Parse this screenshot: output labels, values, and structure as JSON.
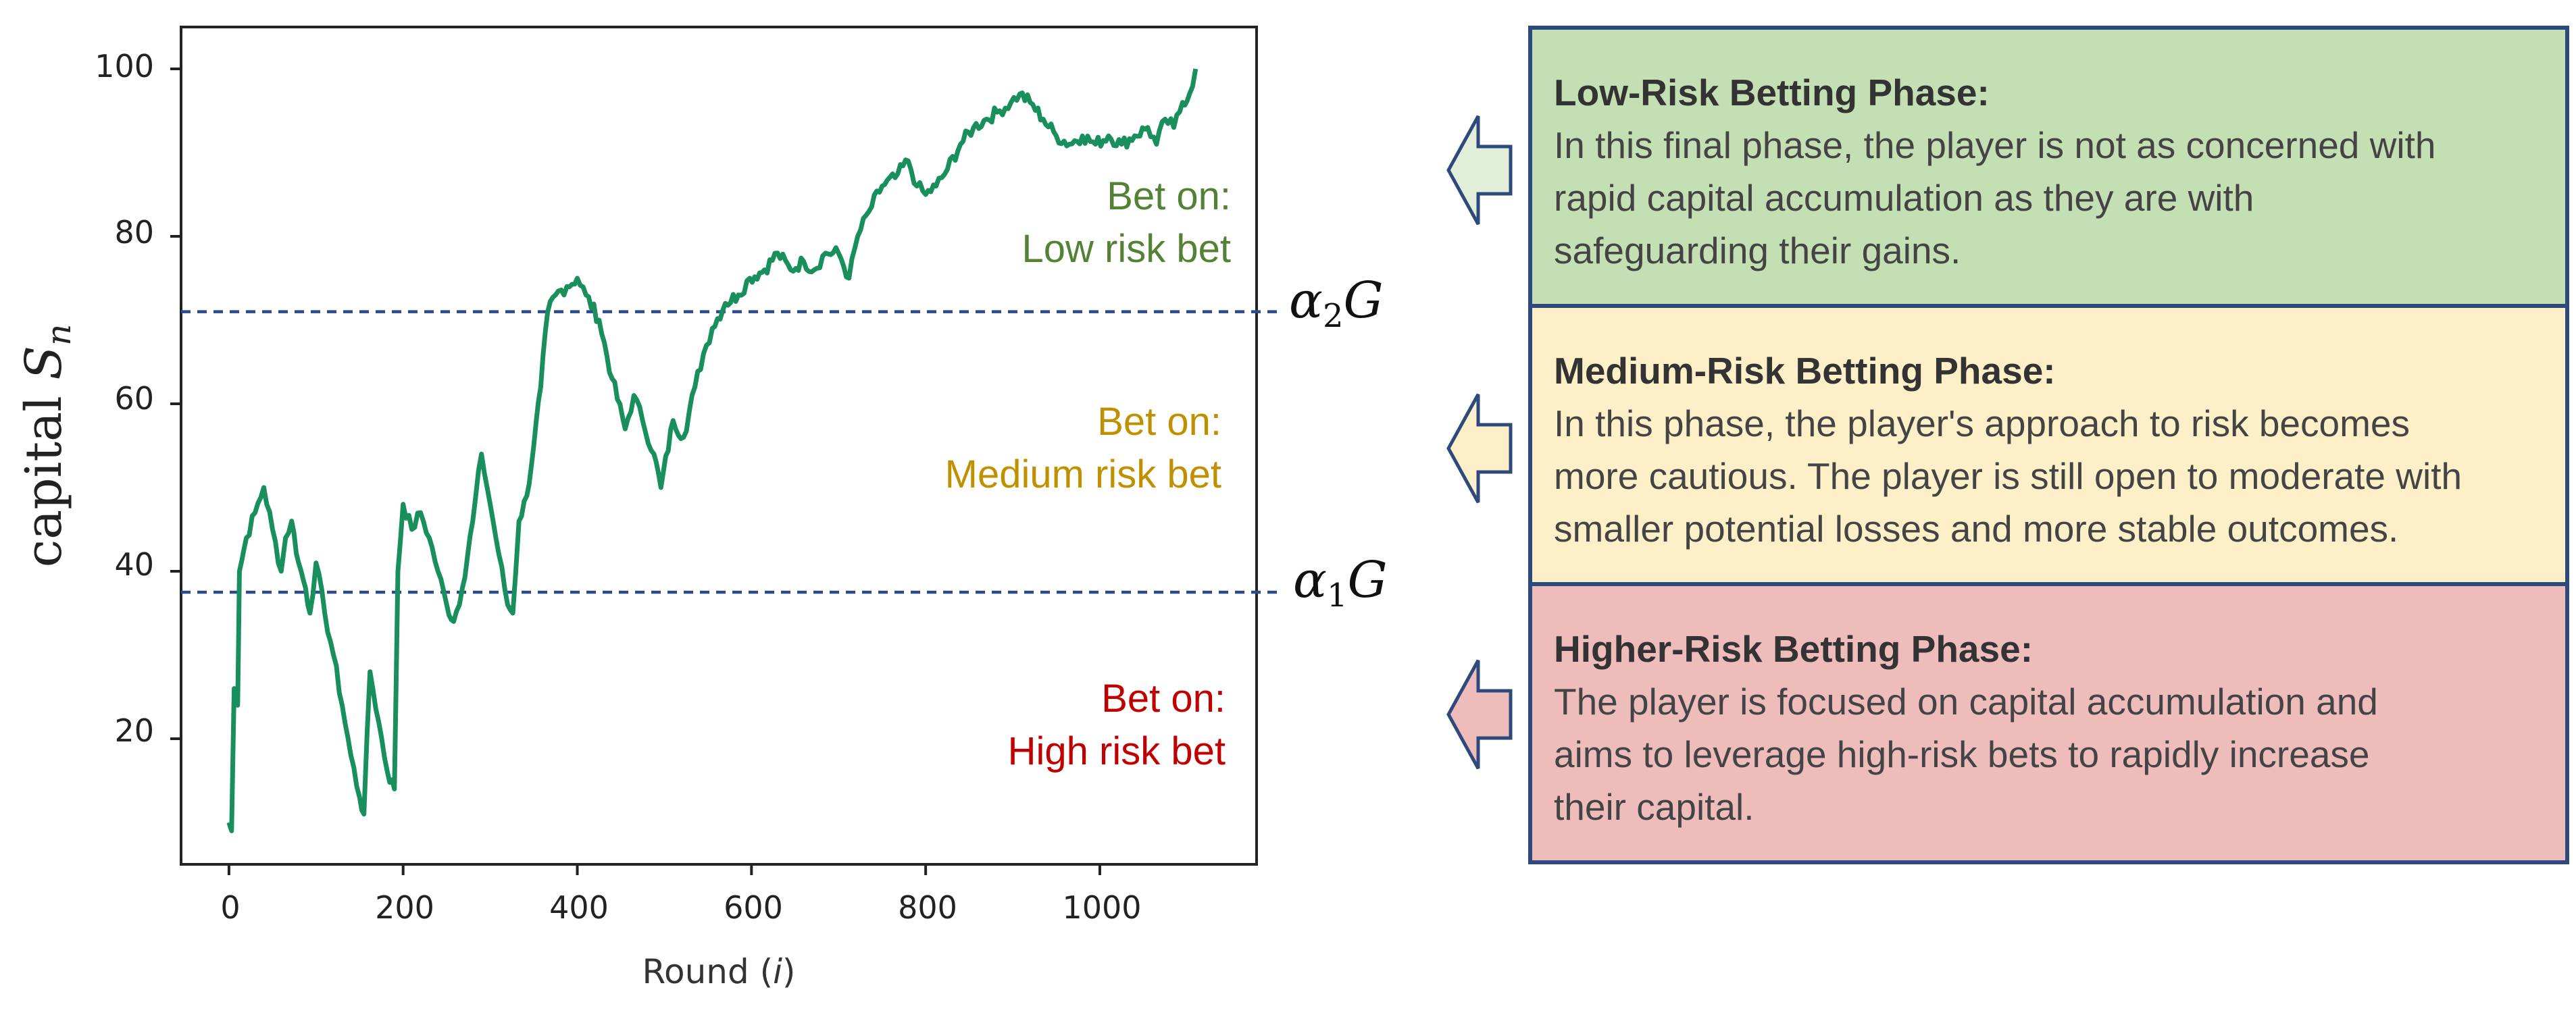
{
  "chart_data": {
    "type": "line",
    "xlabel": "Round (i)",
    "ylabel": "capital S_n",
    "xlim": [
      -55,
      1180
    ],
    "ylim": [
      5,
      105
    ],
    "xticks": [
      0,
      200,
      400,
      600,
      800,
      1000
    ],
    "yticks": [
      20,
      40,
      60,
      80,
      100
    ],
    "grid": false,
    "series": [
      {
        "color": "#1a8f5e",
        "points": [
          [
            0,
            10
          ],
          [
            3,
            9
          ],
          [
            6,
            26
          ],
          [
            10,
            24
          ],
          [
            12,
            40
          ],
          [
            20,
            44
          ],
          [
            30,
            47
          ],
          [
            40,
            50
          ],
          [
            50,
            45
          ],
          [
            60,
            40
          ],
          [
            65,
            44
          ],
          [
            72,
            46
          ],
          [
            80,
            41
          ],
          [
            88,
            38
          ],
          [
            93,
            35
          ],
          [
            100,
            41
          ],
          [
            110,
            35
          ],
          [
            120,
            30
          ],
          [
            130,
            24
          ],
          [
            140,
            18
          ],
          [
            150,
            13
          ],
          [
            155,
            11
          ],
          [
            162,
            28
          ],
          [
            172,
            22
          ],
          [
            182,
            16
          ],
          [
            190,
            14
          ],
          [
            194,
            40
          ],
          [
            200,
            48
          ],
          [
            210,
            45
          ],
          [
            220,
            47
          ],
          [
            230,
            44
          ],
          [
            240,
            40
          ],
          [
            250,
            36
          ],
          [
            258,
            34
          ],
          [
            268,
            38
          ],
          [
            280,
            46
          ],
          [
            290,
            54
          ],
          [
            300,
            48
          ],
          [
            310,
            42
          ],
          [
            320,
            36
          ],
          [
            326,
            35
          ],
          [
            333,
            46
          ],
          [
            342,
            49
          ],
          [
            350,
            55
          ],
          [
            358,
            62
          ],
          [
            366,
            71
          ],
          [
            375,
            73
          ],
          [
            388,
            74
          ],
          [
            400,
            75
          ],
          [
            410,
            73
          ],
          [
            425,
            70
          ],
          [
            440,
            63
          ],
          [
            455,
            57
          ],
          [
            465,
            61
          ],
          [
            475,
            58
          ],
          [
            488,
            54
          ],
          [
            496,
            50
          ],
          [
            510,
            58
          ],
          [
            522,
            56
          ],
          [
            535,
            62
          ],
          [
            545,
            66
          ],
          [
            555,
            69
          ],
          [
            570,
            72
          ],
          [
            585,
            73
          ],
          [
            598,
            75
          ],
          [
            615,
            76
          ],
          [
            630,
            78
          ],
          [
            645,
            76
          ],
          [
            660,
            77
          ],
          [
            672,
            76
          ],
          [
            685,
            78
          ],
          [
            700,
            78
          ],
          [
            712,
            75
          ],
          [
            722,
            80
          ],
          [
            735,
            83
          ],
          [
            750,
            86
          ],
          [
            765,
            87
          ],
          [
            780,
            89
          ],
          [
            790,
            86
          ],
          [
            800,
            85
          ],
          [
            812,
            86
          ],
          [
            825,
            88
          ],
          [
            840,
            91
          ],
          [
            855,
            93
          ],
          [
            870,
            94
          ],
          [
            885,
            95
          ],
          [
            898,
            96
          ],
          [
            908,
            97
          ],
          [
            920,
            96
          ],
          [
            935,
            94
          ],
          [
            950,
            92
          ],
          [
            965,
            91
          ],
          [
            980,
            92
          ],
          [
            995,
            91
          ],
          [
            1010,
            92
          ],
          [
            1025,
            91
          ],
          [
            1040,
            92
          ],
          [
            1055,
            93
          ],
          [
            1065,
            91
          ],
          [
            1075,
            94
          ],
          [
            1085,
            93
          ],
          [
            1095,
            96
          ],
          [
            1103,
            97
          ],
          [
            1110,
            100
          ]
        ]
      }
    ],
    "thresholds": [
      {
        "name": "α1G",
        "y": 37.5,
        "color": "#2e4a8c"
      },
      {
        "name": "α2G",
        "y": 71,
        "color": "#2e4a8c"
      }
    ],
    "annotations": [
      {
        "zone": "low",
        "line1": "Bet on:",
        "line2": "Low risk bet",
        "color": "#548235"
      },
      {
        "zone": "medium",
        "line1": "Bet on:",
        "line2": "Medium risk bet",
        "color": "#bf9000"
      },
      {
        "zone": "high",
        "line1": "Bet on:",
        "line2": "High risk bet",
        "color": "#c00000"
      }
    ]
  },
  "labels": {
    "xlabel_main": "Round (",
    "xlabel_var": "i",
    "xlabel_close": ")",
    "ylabel_main": "capital ",
    "ylabel_var": "S",
    "ylabel_sub": "n",
    "alpha": "α",
    "alpha2_sub": "2",
    "alpha1_sub": "1",
    "g_var": "G",
    "tick_x": [
      "0",
      "200",
      "400",
      "600",
      "800",
      "1000"
    ],
    "tick_y": [
      "20",
      "40",
      "60",
      "80",
      "100"
    ],
    "low_line1": "Bet on:",
    "low_line2": "Low risk bet",
    "med_line1": "Bet on:",
    "med_line2": "Medium risk bet",
    "high_line1": "Bet on:",
    "high_line2": "High risk bet"
  },
  "panels": {
    "low": {
      "title": "Low-Risk Betting Phase:",
      "lines": [
        "In this final phase, the player is not as concerned with",
        "rapid capital accumulation as they are with",
        "safeguarding their gains."
      ],
      "color": "#c5dfb4"
    },
    "medium": {
      "title": "Medium-Risk Betting Phase:",
      "lines": [
        "In this phase, the player's approach to risk becomes",
        "more cautious. The player is still open to moderate with",
        "smaller potential losses and more stable outcomes."
      ],
      "color": "#fdf0c8"
    },
    "high": {
      "title": "Higher-Risk Betting Phase:",
      "lines": [
        "The player is focused on capital accumulation and",
        "aims to leverage high-risk bets to rapidly increase",
        "their capital."
      ],
      "color": "#efbcbc"
    }
  }
}
